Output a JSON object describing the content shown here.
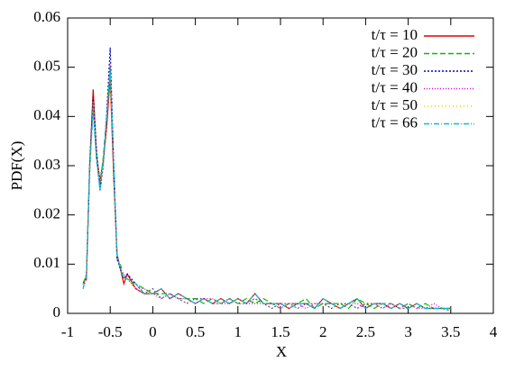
{
  "chart_data": {
    "type": "line",
    "x_label": "X",
    "y_label": "PDF(X)",
    "x": [
      -0.82,
      -0.78,
      -0.74,
      -0.7,
      -0.66,
      -0.62,
      -0.58,
      -0.54,
      -0.5,
      -0.46,
      -0.42,
      -0.38,
      -0.34,
      -0.3,
      -0.2,
      -0.1,
      0,
      0.1,
      0.2,
      0.3,
      0.4,
      0.5,
      0.6,
      0.7,
      0.8,
      0.9,
      1.0,
      1.1,
      1.2,
      1.3,
      1.4,
      1.5,
      1.6,
      1.7,
      1.8,
      1.9,
      2.0,
      2.1,
      2.2,
      2.3,
      2.4,
      2.5,
      2.6,
      2.7,
      2.8,
      2.9,
      3.0,
      3.1,
      3.2,
      3.3,
      3.4,
      3.5
    ],
    "series": [
      {
        "name": "t/τ = 10",
        "color": "#e00000",
        "dash": "none",
        "values": [
          0.006,
          0.007,
          0.03,
          0.0455,
          0.032,
          0.027,
          0.031,
          0.038,
          0.048,
          0.028,
          0.012,
          0.009,
          0.006,
          0.008,
          0.005,
          0.004,
          0.004,
          0.005,
          0.003,
          0.004,
          0.003,
          0.002,
          0.003,
          0.002,
          0.003,
          0.002,
          0.003,
          0.002,
          0.004,
          0.002,
          0.002,
          0.002,
          0.001,
          0.002,
          0.002,
          0.001,
          0.003,
          0.002,
          0.001,
          0.002,
          0.003,
          0.001,
          0.002,
          0.002,
          0.001,
          0.002,
          0.001,
          0.002,
          0.001,
          0.001,
          0.001,
          0.001
        ]
      },
      {
        "name": "t/τ = 20",
        "color": "#00c000",
        "dash": "6 3",
        "values": [
          0.006,
          0.008,
          0.029,
          0.043,
          0.031,
          0.026,
          0.032,
          0.04,
          0.05,
          0.03,
          0.011,
          0.01,
          0.007,
          0.007,
          0.006,
          0.005,
          0.004,
          0.004,
          0.004,
          0.003,
          0.003,
          0.003,
          0.002,
          0.003,
          0.002,
          0.003,
          0.002,
          0.003,
          0.002,
          0.003,
          0.002,
          0.001,
          0.002,
          0.002,
          0.003,
          0.001,
          0.002,
          0.002,
          0.002,
          0.001,
          0.003,
          0.002,
          0.001,
          0.002,
          0.002,
          0.001,
          0.002,
          0.001,
          0.002,
          0.001,
          0.001,
          0.001
        ]
      },
      {
        "name": "t/τ = 30",
        "color": "#0000c0",
        "dash": "2 2",
        "values": [
          0.006,
          0.007,
          0.031,
          0.044,
          0.033,
          0.025,
          0.03,
          0.041,
          0.054,
          0.031,
          0.011,
          0.009,
          0.007,
          0.008,
          0.006,
          0.004,
          0.005,
          0.003,
          0.004,
          0.003,
          0.002,
          0.003,
          0.003,
          0.002,
          0.002,
          0.003,
          0.002,
          0.002,
          0.003,
          0.002,
          0.001,
          0.002,
          0.002,
          0.001,
          0.002,
          0.002,
          0.002,
          0.001,
          0.002,
          0.002,
          0.001,
          0.002,
          0.002,
          0.001,
          0.002,
          0.001,
          0.001,
          0.002,
          0.001,
          0.001,
          0.001,
          0.0005
        ]
      },
      {
        "name": "t/τ = 40",
        "color": "#e000e0",
        "dash": "1 2",
        "values": [
          0.005,
          0.007,
          0.03,
          0.042,
          0.032,
          0.026,
          0.031,
          0.04,
          0.051,
          0.029,
          0.012,
          0.009,
          0.008,
          0.007,
          0.005,
          0.005,
          0.004,
          0.003,
          0.004,
          0.003,
          0.003,
          0.002,
          0.003,
          0.003,
          0.002,
          0.002,
          0.003,
          0.002,
          0.002,
          0.002,
          0.002,
          0.001,
          0.002,
          0.002,
          0.001,
          0.002,
          0.002,
          0.002,
          0.001,
          0.002,
          0.002,
          0.001,
          0.002,
          0.001,
          0.002,
          0.001,
          0.002,
          0.001,
          0.001,
          0.002,
          0.001,
          0.001
        ]
      },
      {
        "name": "t/τ = 50",
        "color": "#e8d000",
        "dash": "1 3",
        "values": [
          0.006,
          0.007,
          0.029,
          0.043,
          0.033,
          0.027,
          0.03,
          0.039,
          0.049,
          0.03,
          0.011,
          0.01,
          0.007,
          0.007,
          0.005,
          0.004,
          0.005,
          0.003,
          0.004,
          0.003,
          0.002,
          0.003,
          0.003,
          0.002,
          0.002,
          0.003,
          0.002,
          0.002,
          0.003,
          0.002,
          0.001,
          0.002,
          0.002,
          0.001,
          0.002,
          0.002,
          0.002,
          0.001,
          0.002,
          0.002,
          0.001,
          0.002,
          0.002,
          0.001,
          0.002,
          0.001,
          0.001,
          0.002,
          0.001,
          0.001,
          0.001,
          0.0005
        ]
      },
      {
        "name": "t/τ = 66",
        "color": "#00c0e0",
        "dash": "6 2 1 2",
        "values": [
          0.005,
          0.008,
          0.03,
          0.041,
          0.031,
          0.025,
          0.031,
          0.04,
          0.05,
          0.031,
          0.012,
          0.009,
          0.007,
          0.007,
          0.006,
          0.004,
          0.004,
          0.005,
          0.003,
          0.004,
          0.003,
          0.002,
          0.003,
          0.002,
          0.003,
          0.002,
          0.003,
          0.002,
          0.004,
          0.002,
          0.002,
          0.002,
          0.001,
          0.002,
          0.002,
          0.001,
          0.003,
          0.002,
          0.001,
          0.002,
          0.003,
          0.001,
          0.002,
          0.002,
          0.001,
          0.002,
          0.001,
          0.002,
          0.001,
          0.001,
          0.001,
          0.001
        ]
      }
    ],
    "xlim": [
      -1,
      4
    ],
    "xticks": [
      -1,
      -0.5,
      0,
      0.5,
      1,
      1.5,
      2,
      2.5,
      3,
      3.5,
      4
    ],
    "ylim": [
      0,
      0.06
    ],
    "yticks": [
      0,
      0.01,
      0.02,
      0.03,
      0.04,
      0.05,
      0.06
    ],
    "legend": "top-right",
    "grid": false
  }
}
